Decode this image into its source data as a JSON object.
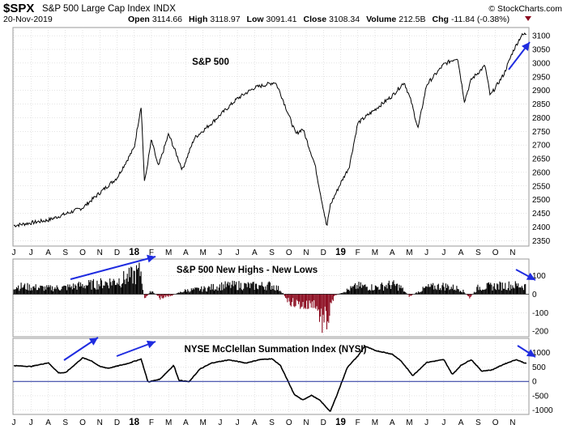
{
  "header": {
    "symbol": "$SPX",
    "name": "S&P 500 Large Cap Index",
    "exchange": "INDX",
    "brand": "© StockCharts.com",
    "date": "20-Nov-2019",
    "stats": [
      {
        "label": "Open",
        "value": "3114.66"
      },
      {
        "label": "High",
        "value": "3118.97"
      },
      {
        "label": "Low",
        "value": "3091.41"
      },
      {
        "label": "Close",
        "value": "3108.34"
      },
      {
        "label": "Volume",
        "value": "212.5B"
      },
      {
        "label": "Chg",
        "value": "-11.84 (-0.38%)"
      }
    ],
    "chg_indicator": "triangle-down-icon"
  },
  "colors": {
    "price": "#000000",
    "positive": "#000000",
    "negative": "#8b0a1e",
    "arrow": "#1f2ce0",
    "zero_line": "#1b2a9a",
    "grid": "#c8c8c8"
  },
  "months": [
    "J",
    "J",
    "A",
    "S",
    "O",
    "N",
    "D",
    "18",
    "F",
    "M",
    "A",
    "M",
    "J",
    "J",
    "A",
    "S",
    "O",
    "N",
    "D",
    "19",
    "F",
    "M",
    "A",
    "M",
    "J",
    "J",
    "A",
    "S",
    "O",
    "N"
  ],
  "chart_data": [
    {
      "type": "line",
      "title": "S&P 500",
      "ylim": [
        2330,
        3130
      ],
      "yticks": [
        2350,
        2400,
        2450,
        2500,
        2550,
        2600,
        2650,
        2700,
        2750,
        2800,
        2850,
        2900,
        2950,
        3000,
        3050,
        3100
      ],
      "anchors": [
        [
          0,
          2405
        ],
        [
          2,
          2425
        ],
        [
          4,
          2470
        ],
        [
          6,
          2580
        ],
        [
          7,
          2690
        ],
        [
          7.4,
          2845
        ],
        [
          7.6,
          2560
        ],
        [
          8,
          2720
        ],
        [
          8.4,
          2620
        ],
        [
          9,
          2740
        ],
        [
          9.8,
          2610
        ],
        [
          10.5,
          2725
        ],
        [
          11.5,
          2780
        ],
        [
          12.5,
          2840
        ],
        [
          13,
          2870
        ],
        [
          14,
          2910
        ],
        [
          15.2,
          2930
        ],
        [
          15.5,
          2890
        ],
        [
          16.4,
          2740
        ],
        [
          16.8,
          2760
        ],
        [
          17.5,
          2630
        ],
        [
          18.2,
          2400
        ],
        [
          18.4,
          2480
        ],
        [
          19,
          2560
        ],
        [
          19.5,
          2620
        ],
        [
          20,
          2780
        ],
        [
          21,
          2830
        ],
        [
          22,
          2880
        ],
        [
          22.7,
          2930
        ],
        [
          23.1,
          2860
        ],
        [
          23.5,
          2760
        ],
        [
          24,
          2920
        ],
        [
          25,
          2995
        ],
        [
          25.8,
          3020
        ],
        [
          26.2,
          2860
        ],
        [
          26.6,
          2940
        ],
        [
          27.4,
          2990
        ],
        [
          27.7,
          2880
        ],
        [
          28.5,
          2960
        ],
        [
          29,
          3040
        ],
        [
          29.5,
          3100
        ],
        [
          29.8,
          3108
        ]
      ]
    },
    {
      "type": "bar",
      "title": "S&P 500 New Highs - New Lows",
      "ylim": [
        -230,
        190
      ],
      "yticks": [
        -200,
        -100,
        0,
        100
      ],
      "anchors": [
        [
          0,
          55
        ],
        [
          2,
          40
        ],
        [
          3,
          45
        ],
        [
          4,
          60
        ],
        [
          5,
          70
        ],
        [
          6,
          90
        ],
        [
          6.6,
          110
        ],
        [
          7,
          130
        ],
        [
          7.4,
          150
        ],
        [
          7.6,
          -40
        ],
        [
          8,
          25
        ],
        [
          8.5,
          -25
        ],
        [
          9,
          -15
        ],
        [
          10,
          25
        ],
        [
          11,
          35
        ],
        [
          12,
          55
        ],
        [
          13,
          60
        ],
        [
          14,
          55
        ],
        [
          15,
          60
        ],
        [
          15.5,
          30
        ],
        [
          16,
          -50
        ],
        [
          17,
          -80
        ],
        [
          17.5,
          -60
        ],
        [
          18,
          -200
        ],
        [
          18.3,
          -160
        ],
        [
          18.6,
          -20
        ],
        [
          19,
          10
        ],
        [
          20,
          55
        ],
        [
          21,
          45
        ],
        [
          22,
          65
        ],
        [
          22.5,
          45
        ],
        [
          23,
          -15
        ],
        [
          24,
          45
        ],
        [
          25,
          55
        ],
        [
          26,
          35
        ],
        [
          26.5,
          -25
        ],
        [
          27,
          45
        ],
        [
          28,
          55
        ],
        [
          29,
          60
        ],
        [
          29.8,
          55
        ]
      ]
    },
    {
      "type": "line",
      "title": "NYSE McClellan Summation Index (NYSI)",
      "ylim": [
        -1150,
        1500
      ],
      "yticks": [
        -1000,
        -500,
        0,
        500,
        1000
      ],
      "anchors": [
        [
          0,
          550
        ],
        [
          1,
          520
        ],
        [
          2,
          650
        ],
        [
          2.6,
          300
        ],
        [
          3,
          300
        ],
        [
          3.5,
          560
        ],
        [
          4,
          820
        ],
        [
          4.5,
          720
        ],
        [
          5,
          520
        ],
        [
          5.5,
          460
        ],
        [
          6.6,
          620
        ],
        [
          7.4,
          780
        ],
        [
          7.8,
          -20
        ],
        [
          8.5,
          80
        ],
        [
          9.3,
          560
        ],
        [
          9.6,
          40
        ],
        [
          10.2,
          -10
        ],
        [
          10.8,
          420
        ],
        [
          11.5,
          640
        ],
        [
          12.5,
          750
        ],
        [
          13.5,
          640
        ],
        [
          14.3,
          760
        ],
        [
          15,
          790
        ],
        [
          15.5,
          560
        ],
        [
          16.3,
          -450
        ],
        [
          16.8,
          -650
        ],
        [
          17.3,
          -480
        ],
        [
          17.8,
          -660
        ],
        [
          18.4,
          -1050
        ],
        [
          18.8,
          -450
        ],
        [
          19.4,
          500
        ],
        [
          20,
          880
        ],
        [
          20.4,
          1230
        ],
        [
          21,
          1080
        ],
        [
          22,
          950
        ],
        [
          22.5,
          720
        ],
        [
          23.2,
          200
        ],
        [
          24,
          660
        ],
        [
          25,
          760
        ],
        [
          25.5,
          240
        ],
        [
          26,
          560
        ],
        [
          26.6,
          760
        ],
        [
          27.2,
          360
        ],
        [
          27.8,
          400
        ],
        [
          28.5,
          600
        ],
        [
          29.2,
          760
        ],
        [
          29.8,
          620
        ]
      ]
    }
  ],
  "arrows": {
    "price": [
      [
        [
          628,
          86
        ],
        [
          654,
          52
        ]
      ]
    ],
    "highs_lows": [
      [
        [
          87,
          345
        ],
        [
          192,
          317
        ]
      ],
      [
        [
          637,
          333
        ],
        [
          661,
          346
        ]
      ]
    ],
    "nysi": [
      [
        [
          79,
          445
        ],
        [
          121,
          417
        ]
      ],
      [
        [
          144,
          440
        ],
        [
          192,
          422
        ]
      ],
      [
        [
          639,
          427
        ],
        [
          661,
          441
        ]
      ]
    ]
  }
}
